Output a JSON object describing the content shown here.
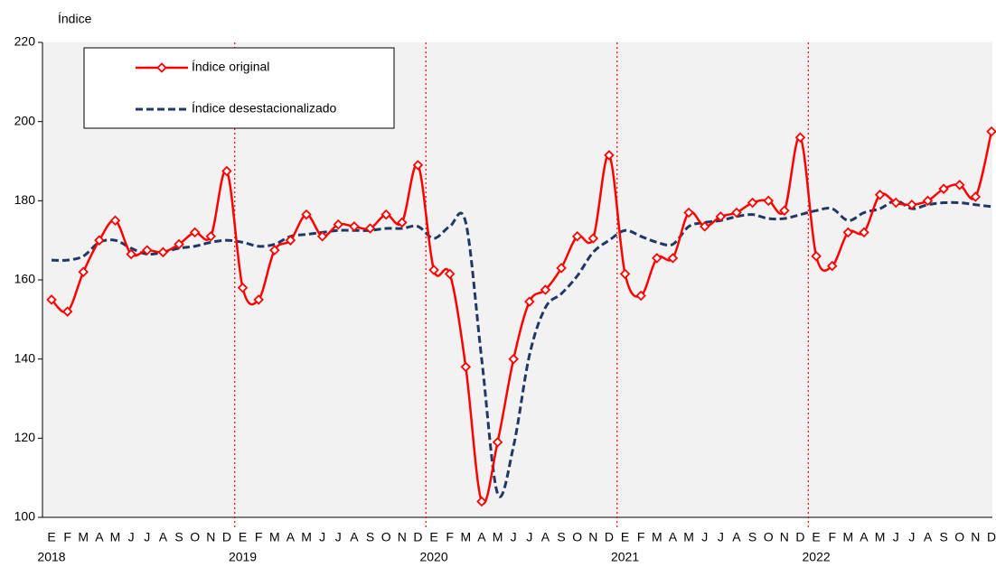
{
  "chart_data": {
    "type": "line",
    "y_label": "Índice",
    "categories": [
      "E",
      "F",
      "M",
      "A",
      "M",
      "J",
      "J",
      "A",
      "S",
      "O",
      "N",
      "D",
      "E",
      "F",
      "M",
      "A",
      "M",
      "J",
      "J",
      "A",
      "S",
      "O",
      "N",
      "D",
      "E",
      "F",
      "M",
      "A",
      "M",
      "J",
      "J",
      "A",
      "S",
      "O",
      "N",
      "D",
      "E",
      "F",
      "M",
      "A",
      "M",
      "J",
      "J",
      "A",
      "S",
      "O",
      "N",
      "D",
      "E",
      "F",
      "M",
      "A",
      "M",
      "J",
      "J",
      "A",
      "S",
      "O",
      "N",
      "D"
    ],
    "years": [
      "2018",
      "2019",
      "2020",
      "2021",
      "2022"
    ],
    "series": [
      {
        "name": "Índice original",
        "color": "#ff0000",
        "style": "solid-markers",
        "values": [
          155,
          152,
          162,
          170,
          175,
          166.5,
          167.5,
          167,
          169,
          172,
          171,
          187.5,
          158,
          155,
          167.5,
          170,
          176.5,
          171,
          174,
          173.5,
          173,
          176.5,
          174.5,
          189,
          162.5,
          161.5,
          138,
          104,
          119,
          140,
          154.5,
          157.5,
          163,
          171,
          170.5,
          191.5,
          161.5,
          156,
          165.5,
          165.5,
          177,
          173.5,
          176,
          177,
          179.5,
          180,
          177.5,
          196,
          166,
          163.5,
          172,
          172,
          181.5,
          179.5,
          179,
          180,
          183,
          184,
          181,
          197.5
        ]
      },
      {
        "name": "Índice desestacionalizado",
        "color": "#1f3864",
        "style": "dashed",
        "values": [
          165,
          165,
          166,
          169.5,
          170,
          168,
          166.5,
          167,
          168,
          168.5,
          169.5,
          170,
          169.5,
          168.5,
          169,
          171,
          171.5,
          172,
          172.5,
          172.5,
          172.5,
          173,
          173,
          173.5,
          170.5,
          173.5,
          174.5,
          140,
          106,
          118,
          141,
          153,
          156.5,
          161,
          167,
          170,
          172.5,
          171,
          169.5,
          169,
          173.5,
          174.5,
          175,
          176,
          176.5,
          175.5,
          175.5,
          176.5,
          177.5,
          178,
          175,
          177,
          178,
          180,
          178,
          179,
          179.5,
          179.5,
          179,
          178.5
        ]
      }
    ],
    "ylim": [
      100,
      220
    ],
    "yticks": [
      100,
      120,
      140,
      160,
      180,
      200,
      220
    ]
  }
}
